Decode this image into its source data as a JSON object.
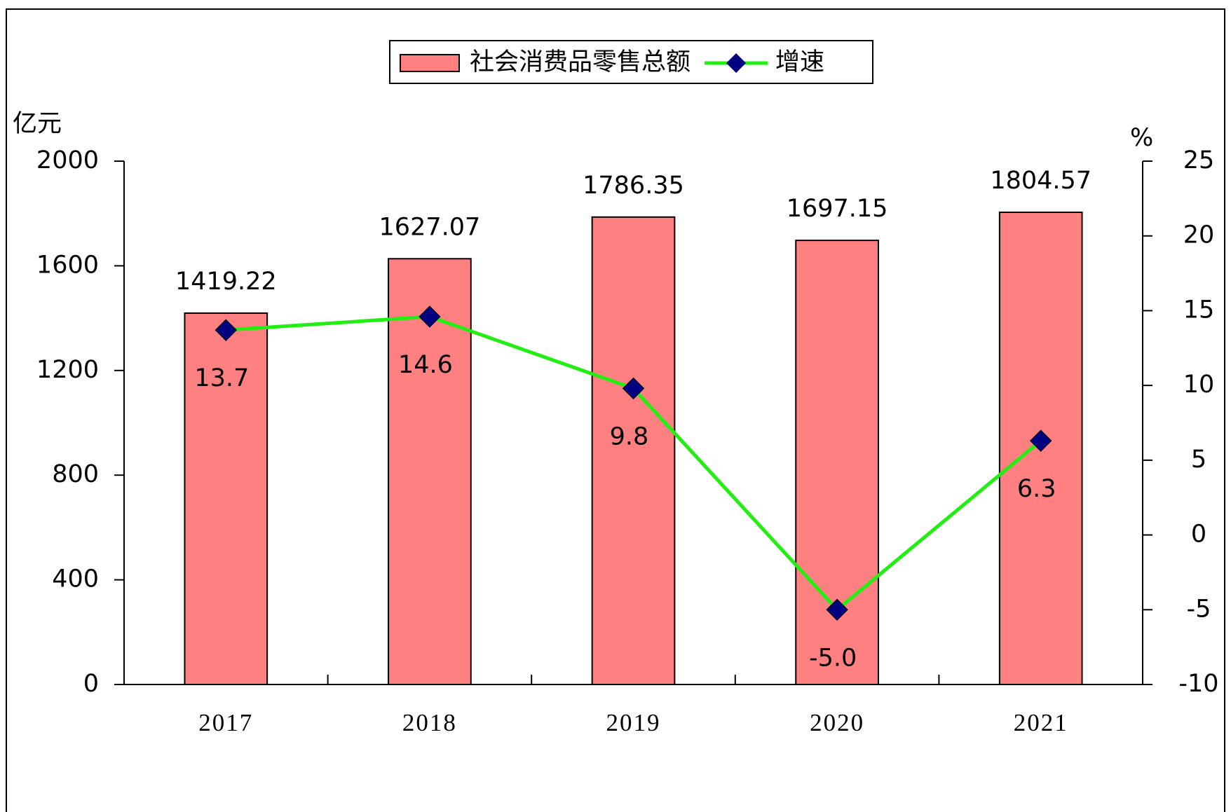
{
  "chart_data": {
    "type": "bar",
    "ylabel": "亿元",
    "y2label": "%",
    "categories": [
      "2017",
      "2018",
      "2019",
      "2020",
      "2021"
    ],
    "series": [
      {
        "name": "社会消费品零售总额",
        "type": "bar",
        "color": "#ff8080",
        "values": [
          1419.22,
          1627.07,
          1786.35,
          1697.15,
          1804.57
        ]
      },
      {
        "name": "增速",
        "type": "line",
        "axis": "y2",
        "color": "#22ee11",
        "marker_color": "#000080",
        "values": [
          13.7,
          14.6,
          9.8,
          -5.0,
          6.3
        ],
        "value_labels": [
          "13.7",
          "14.6",
          "9.8",
          "-5.0",
          "6.3"
        ]
      }
    ],
    "ylim": [
      0,
      2000
    ],
    "yticks": [
      0,
      400,
      800,
      1200,
      1600,
      2000
    ],
    "y2lim": [
      -10,
      25
    ],
    "y2ticks": [
      -10,
      -5,
      0,
      5,
      10,
      15,
      20,
      25
    ],
    "grid": false
  }
}
